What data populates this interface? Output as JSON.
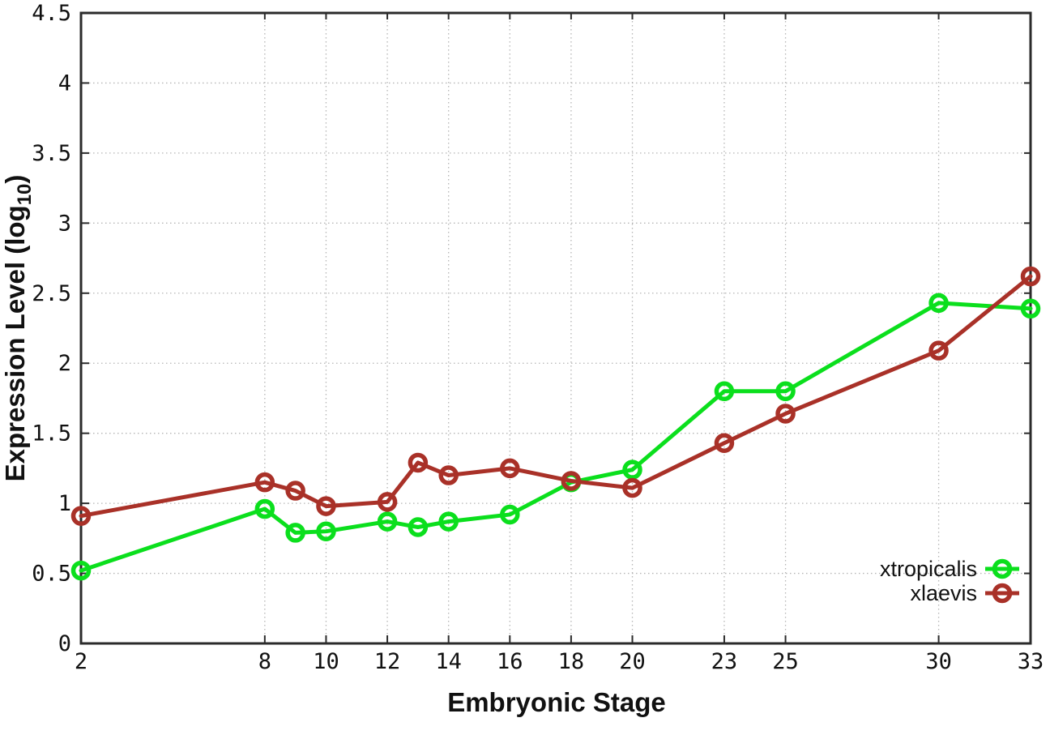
{
  "labels": {
    "xlabel": "Embryonic Stage",
    "ylabel_pre": "Expression Level (log",
    "ylabel_sub": "10",
    "ylabel_post": ")"
  },
  "chart_data": {
    "type": "line",
    "title": "",
    "xlabel": "Embryonic Stage",
    "ylabel": "Expression Level (log10)",
    "x": [
      2,
      8,
      9,
      10,
      12,
      13,
      14,
      16,
      18,
      20,
      23,
      25,
      30,
      33
    ],
    "series": [
      {
        "name": "xtropicalis",
        "color": "#0bdf1d",
        "values": [
          0.52,
          0.96,
          0.79,
          0.8,
          0.87,
          0.83,
          0.87,
          0.92,
          1.15,
          1.24,
          1.8,
          1.8,
          2.43,
          2.39
        ]
      },
      {
        "name": "xlaevis",
        "color": "#a93128",
        "values": [
          0.91,
          1.15,
          1.09,
          0.98,
          1.01,
          1.29,
          1.2,
          1.25,
          1.16,
          1.11,
          1.43,
          1.64,
          2.09,
          2.62
        ]
      }
    ],
    "xlim": [
      2,
      33
    ],
    "ylim": [
      0,
      4.5
    ],
    "xticks": [
      2,
      8,
      10,
      12,
      14,
      16,
      18,
      20,
      23,
      25,
      30,
      33
    ],
    "yticks": [
      0,
      0.5,
      1,
      1.5,
      2,
      2.5,
      3,
      3.5,
      4,
      4.5
    ],
    "grid": true,
    "grid_style": "dotted",
    "legend_position": "bottom-right",
    "marker": "open-circle",
    "background": "#ffffff",
    "axis_color": "#2b2b2b",
    "grid_color": "#b5b5b5"
  }
}
